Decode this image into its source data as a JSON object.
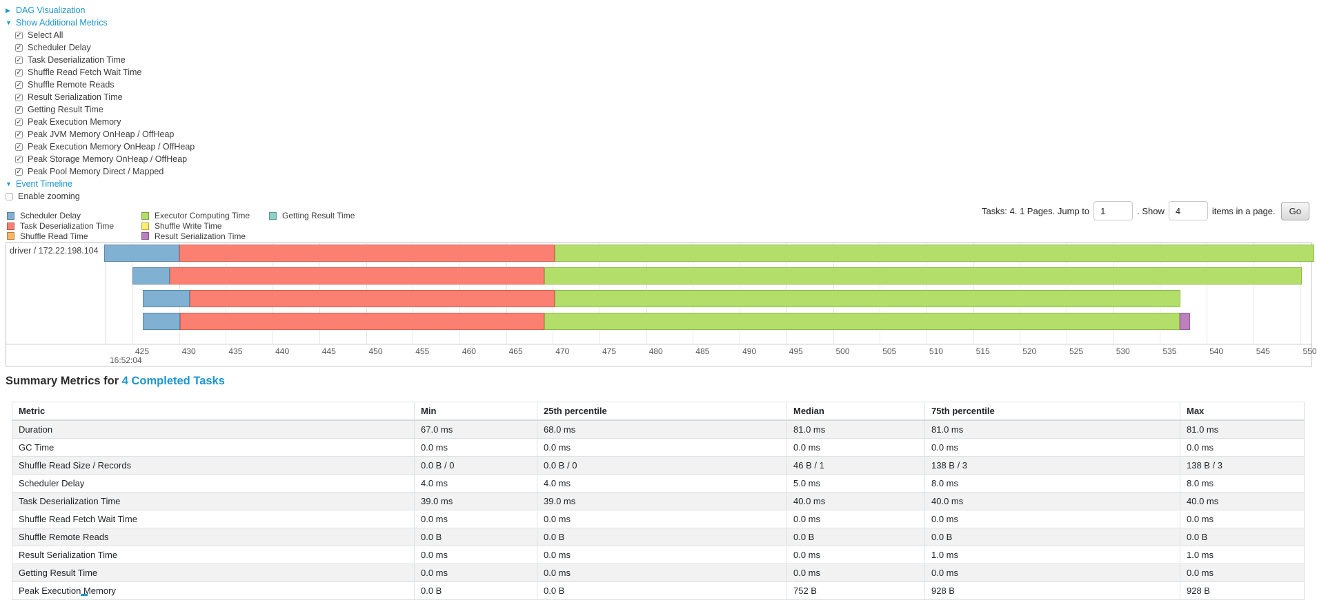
{
  "icons": {
    "collapsed_arrow": "▶",
    "expanded_arrow": "▼",
    "check_glyph": "✓"
  },
  "link_color": "#1b96ce",
  "tree": {
    "dag_label": "DAG Visualization",
    "metrics_label": "Show Additional Metrics",
    "checkboxes": [
      "Select All",
      "Scheduler Delay",
      "Task Deserialization Time",
      "Shuffle Read Fetch Wait Time",
      "Shuffle Remote Reads",
      "Result Serialization Time",
      "Getting Result Time",
      "Peak Execution Memory",
      "Peak JVM Memory OnHeap / OffHeap",
      "Peak Execution Memory OnHeap / OffHeap",
      "Peak Storage Memory OnHeap / OffHeap",
      "Peak Pool Memory Direct / Mapped"
    ],
    "event_timeline_label": "Event Timeline",
    "enable_zooming_label": "Enable zooming",
    "enable_zooming_checked": false
  },
  "legend": [
    {
      "label": "Scheduler Delay",
      "color": "#80B1D3"
    },
    {
      "label": "Task Deserialization Time",
      "color": "#FB8072"
    },
    {
      "label": "Shuffle Read Time",
      "color": "#FDB462"
    },
    {
      "label": "Executor Computing Time",
      "color": "#B3DE69"
    },
    {
      "label": "Shuffle Write Time",
      "color": "#FFED6F"
    },
    {
      "label": "Result Serialization Time",
      "color": "#BC80BD"
    },
    {
      "label": "Getting Result Time",
      "color": "#8DD3C7"
    }
  ],
  "pagination": {
    "summary_text": "Tasks: 4. 1 Pages. Jump to",
    "jump_value": "1",
    "show_label": ". Show",
    "show_value": "4",
    "items_label": "items in a page.",
    "go_label": "Go"
  },
  "chart_data": {
    "type": "timeline",
    "group_label": "driver / 172.22.198.104",
    "axis_date_label": "16:52:04",
    "axis_unit": "ms",
    "axis_ticks_ms": [
      425,
      430,
      435,
      440,
      445,
      450,
      455,
      460,
      465,
      470,
      475,
      480,
      485,
      490,
      495,
      500,
      505,
      510,
      515,
      520,
      525,
      530,
      535,
      540,
      545,
      550
    ],
    "segment_colors": {
      "scheduler_delay": "#80B1D3",
      "task_deserialization": "#FB8072",
      "executor_computing": "#B3DE69",
      "result_serialization": "#BC80BD"
    },
    "segment_border_colors": {
      "scheduler_delay": "#5b87a6",
      "task_deserialization": "#d85f52",
      "executor_computing": "#8fb94b",
      "result_serialization": "#975f98"
    },
    "tasks": [
      {
        "segments": [
          {
            "type": "scheduler_delay",
            "start": 422.0,
            "end": 430.0
          },
          {
            "type": "task_deserialization",
            "start": 430.0,
            "end": 470.2
          },
          {
            "type": "executor_computing",
            "start": 470.2,
            "end": 551.5
          }
        ]
      },
      {
        "segments": [
          {
            "type": "scheduler_delay",
            "start": 425.0,
            "end": 429.0
          },
          {
            "type": "task_deserialization",
            "start": 429.0,
            "end": 469.1
          },
          {
            "type": "executor_computing",
            "start": 469.1,
            "end": 550.2
          }
        ]
      },
      {
        "segments": [
          {
            "type": "scheduler_delay",
            "start": 426.1,
            "end": 431.1
          },
          {
            "type": "task_deserialization",
            "start": 431.1,
            "end": 470.2
          },
          {
            "type": "executor_computing",
            "start": 470.2,
            "end": 537.2
          }
        ]
      },
      {
        "segments": [
          {
            "type": "scheduler_delay",
            "start": 426.1,
            "end": 430.1
          },
          {
            "type": "task_deserialization",
            "start": 430.1,
            "end": 469.1
          },
          {
            "type": "executor_computing",
            "start": 469.1,
            "end": 537.1
          },
          {
            "type": "result_serialization",
            "start": 537.1,
            "end": 538.2
          }
        ]
      }
    ]
  },
  "summary": {
    "title_prefix": "Summary Metrics for ",
    "title_link": "4 Completed Tasks",
    "headers": [
      "Metric",
      "Min",
      "25th percentile",
      "Median",
      "75th percentile",
      "Max"
    ],
    "rows": [
      [
        "Duration",
        "67.0 ms",
        "68.0 ms",
        "81.0 ms",
        "81.0 ms",
        "81.0 ms"
      ],
      [
        "GC Time",
        "0.0 ms",
        "0.0 ms",
        "0.0 ms",
        "0.0 ms",
        "0.0 ms"
      ],
      [
        "Shuffle Read Size / Records",
        "0.0 B / 0",
        "0.0 B / 0",
        "46 B / 1",
        "138 B / 3",
        "138 B / 3"
      ],
      [
        "Scheduler Delay",
        "4.0 ms",
        "4.0 ms",
        "5.0 ms",
        "8.0 ms",
        "8.0 ms"
      ],
      [
        "Task Deserialization Time",
        "39.0 ms",
        "39.0 ms",
        "40.0 ms",
        "40.0 ms",
        "40.0 ms"
      ],
      [
        "Shuffle Read Fetch Wait Time",
        "0.0 ms",
        "0.0 ms",
        "0.0 ms",
        "0.0 ms",
        "0.0 ms"
      ],
      [
        "Shuffle Remote Reads",
        "0.0 B",
        "0.0 B",
        "0.0 B",
        "0.0 B",
        "0.0 B"
      ],
      [
        "Result Serialization Time",
        "0.0 ms",
        "0.0 ms",
        "0.0 ms",
        "1.0 ms",
        "1.0 ms"
      ],
      [
        "Getting Result Time",
        "0.0 ms",
        "0.0 ms",
        "0.0 ms",
        "0.0 ms",
        "0.0 ms"
      ],
      [
        "Peak Execution Memory",
        "0.0 B",
        "0.0 B",
        "752 B",
        "928 B",
        "928 B"
      ]
    ]
  }
}
